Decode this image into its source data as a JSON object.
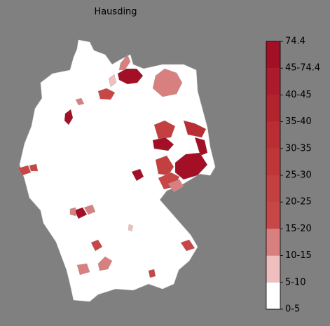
{
  "title": "Hausding",
  "colorbar": {
    "labels": [
      "0-5",
      "5-10",
      "10-15",
      "15-20",
      "20-25",
      "25-30",
      "30-35",
      "35-40",
      "40-45",
      "45-74.4",
      "74.4"
    ],
    "colors": [
      "#ffffff",
      "#efbfbf",
      "#d88080",
      "#c84646",
      "#c43f40",
      "#bf3638",
      "#b92d33",
      "#b3232e",
      "#ac1a2b",
      "#a30f25"
    ]
  }
}
